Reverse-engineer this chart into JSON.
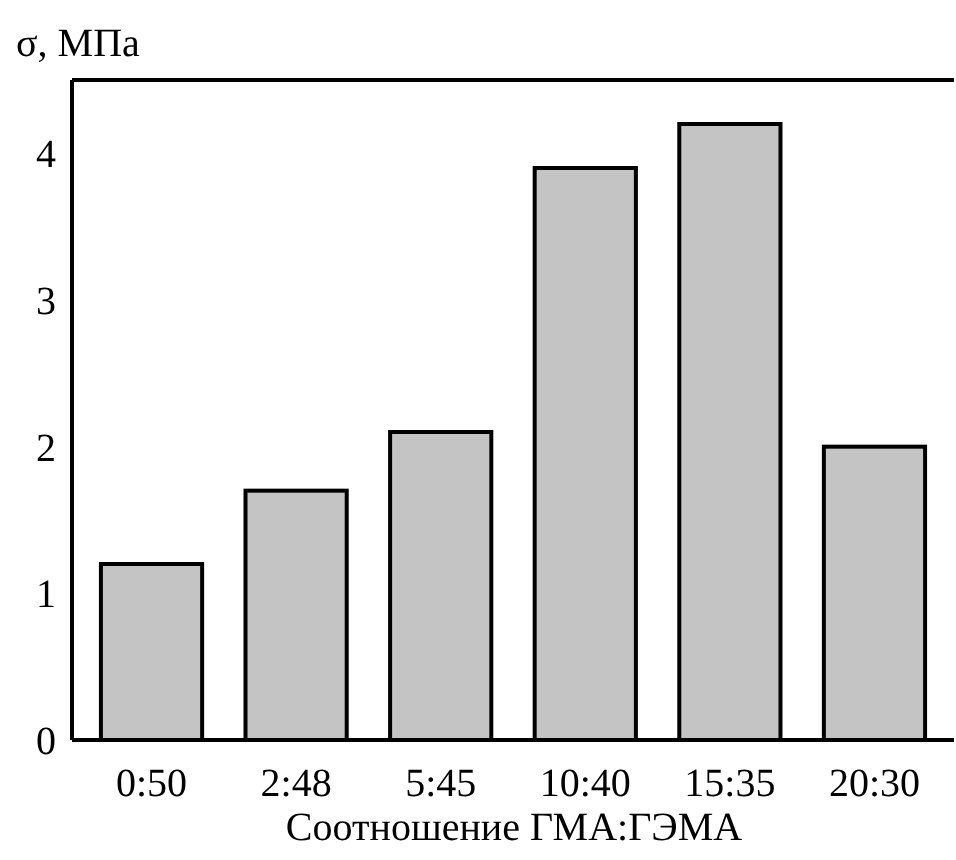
{
  "chart_data": {
    "type": "bar",
    "ylabel": "σ, МПа",
    "xlabel": "Соотношение ГМА:ГЭМА",
    "categories": [
      "0:50",
      "2:48",
      "5:45",
      "10:40",
      "15:35",
      "20:30"
    ],
    "values": [
      1.2,
      1.7,
      2.1,
      3.9,
      4.2,
      2.0
    ],
    "color": "#c4c4c4",
    "ylim": [
      0,
      4.5
    ],
    "yticks": [
      0,
      1,
      2,
      3,
      4
    ],
    "grid": false
  }
}
